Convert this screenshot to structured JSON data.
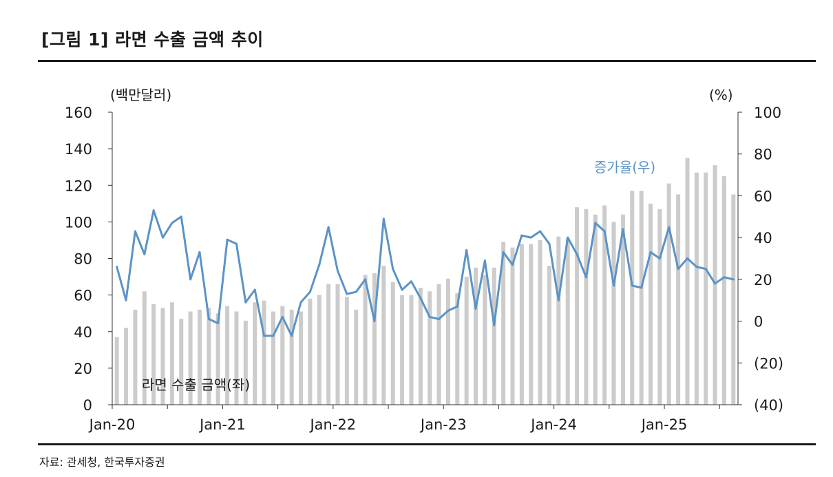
{
  "figure": {
    "title": "[그림 1] 라면 수출 금액 추이",
    "source": "자료: 관세청, 한국투자증권"
  },
  "chart_data": {
    "type": "bar+line",
    "left_unit": "(백만달러)",
    "right_unit": "(%)",
    "left_axis": {
      "min": 0,
      "max": 160,
      "step": 20,
      "tick_labels": [
        "0",
        "20",
        "40",
        "60",
        "80",
        "100",
        "120",
        "140",
        "160"
      ]
    },
    "right_axis": {
      "min": -40,
      "max": 100,
      "step": 20,
      "tick_labels": [
        "(40)",
        "(20)",
        "0",
        "20",
        "40",
        "60",
        "80",
        "100"
      ]
    },
    "x_tick_labels": [
      "Jan-20",
      "Jan-21",
      "Jan-22",
      "Jan-23",
      "Jan-24",
      "Jan-25"
    ],
    "bar_series": {
      "name": "라면 수출 금액(좌)",
      "color": "#cccccc",
      "values": [
        37,
        42,
        52,
        62,
        55,
        53,
        56,
        47,
        51,
        52,
        53,
        50,
        54,
        51,
        46,
        56,
        57,
        51,
        54,
        52,
        51,
        58,
        60,
        66,
        66,
        59,
        52,
        71,
        72,
        76,
        67,
        60,
        60,
        64,
        62,
        66,
        69,
        61,
        70,
        75,
        71,
        75,
        89,
        86,
        88,
        88,
        90,
        76,
        92,
        91,
        108,
        107,
        104,
        109,
        100,
        104,
        117,
        117,
        110,
        107,
        121,
        115,
        135,
        127,
        127,
        131,
        125,
        115
      ]
    },
    "line_series": {
      "name": "증가율(우)",
      "color": "#5b93c7",
      "values": [
        26,
        10,
        43,
        32,
        53,
        40,
        47,
        50,
        20,
        33,
        1,
        -1,
        39,
        37,
        9,
        15,
        -7,
        -7,
        2,
        -7,
        9,
        14,
        27,
        45,
        24,
        13,
        14,
        20,
        0,
        49,
        25,
        15,
        19,
        11,
        2,
        1,
        5,
        7,
        34,
        6,
        29,
        -2,
        33,
        27,
        41,
        40,
        43,
        37,
        10,
        40,
        32,
        21,
        47,
        43,
        17,
        44,
        17,
        16,
        33,
        30,
        45,
        25,
        30,
        26,
        25,
        18,
        21,
        20
      ]
    }
  }
}
